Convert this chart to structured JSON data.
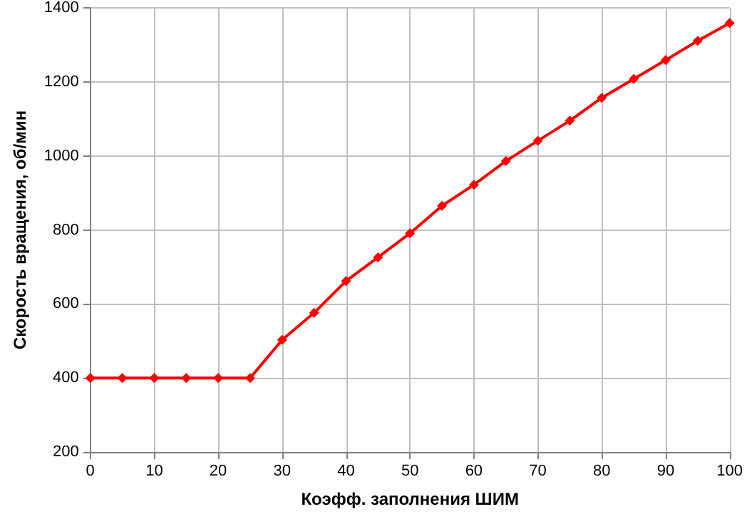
{
  "chart_data": {
    "type": "line",
    "xlabel": "Коэфф. заполнения ШИМ",
    "ylabel": "Скорость вращения, об/мин",
    "x": [
      0,
      5,
      10,
      15,
      20,
      25,
      30,
      35,
      40,
      45,
      50,
      55,
      60,
      65,
      70,
      75,
      80,
      85,
      90,
      95,
      100
    ],
    "series": [
      {
        "color": "#ff0000",
        "values": [
          400,
          400,
          400,
          400,
          400,
          400,
          503,
          576,
          662,
          726,
          791,
          865,
          922,
          986,
          1041,
          1095,
          1157,
          1208,
          1259,
          1311,
          1359
        ]
      }
    ],
    "xlim": [
      0,
      100
    ],
    "xticks": [
      0,
      10,
      20,
      30,
      40,
      50,
      60,
      70,
      80,
      90,
      100
    ],
    "ylim": [
      200,
      1400
    ],
    "yticks": [
      200,
      400,
      600,
      800,
      1000,
      1200,
      1400
    ],
    "grid": true,
    "marker": "diamond",
    "line_style": "solid"
  }
}
